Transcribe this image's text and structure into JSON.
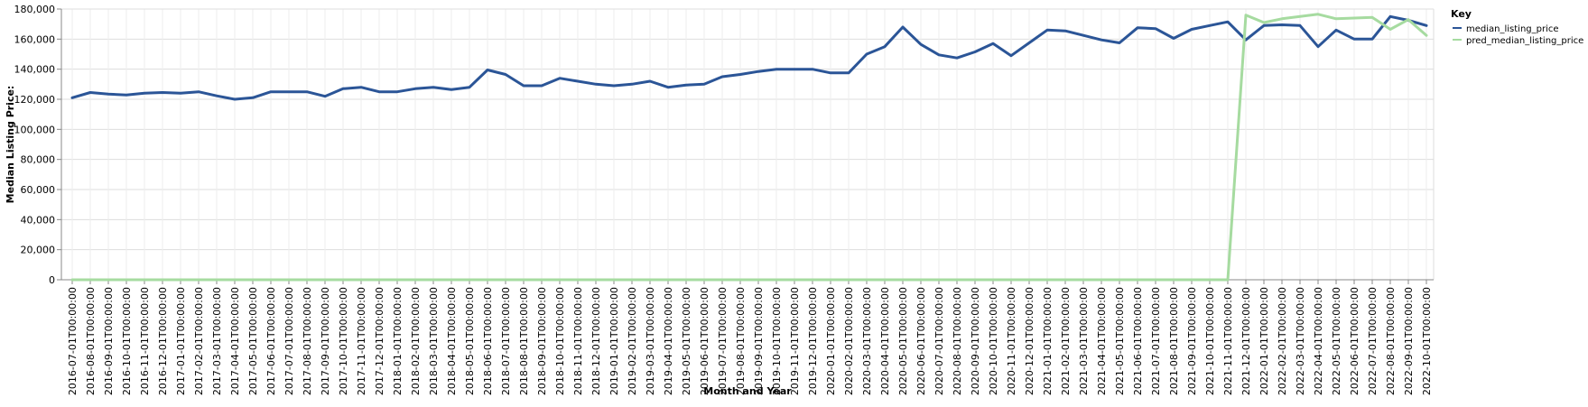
{
  "colors": {
    "median_listing_price": "#2b5597",
    "pred_median_listing_price": "#a6dba0",
    "grid": "#dddddd",
    "axis": "#888888"
  },
  "chart_data": {
    "type": "line",
    "xlabel": "Month and Year",
    "ylabel": "Median Listing Price:",
    "ylim": [
      0,
      180000
    ],
    "y_ticks": [
      0,
      20000,
      40000,
      60000,
      80000,
      100000,
      120000,
      140000,
      160000,
      180000
    ],
    "y_tick_labels": [
      "0",
      "20,000",
      "40,000",
      "60,000",
      "80,000",
      "100,000",
      "120,000",
      "140,000",
      "160,000",
      "180,000"
    ],
    "grid": true,
    "legend": {
      "title": "Key",
      "placement": "top-right"
    },
    "x": [
      "2016-07-01T00:00:00",
      "2016-08-01T00:00:00",
      "2016-09-01T00:00:00",
      "2016-10-01T00:00:00",
      "2016-11-01T00:00:00",
      "2016-12-01T00:00:00",
      "2017-01-01T00:00:00",
      "2017-02-01T00:00:00",
      "2017-03-01T00:00:00",
      "2017-04-01T00:00:00",
      "2017-05-01T00:00:00",
      "2017-06-01T00:00:00",
      "2017-07-01T00:00:00",
      "2017-08-01T00:00:00",
      "2017-09-01T00:00:00",
      "2017-10-01T00:00:00",
      "2017-11-01T00:00:00",
      "2017-12-01T00:00:00",
      "2018-01-01T00:00:00",
      "2018-02-01T00:00:00",
      "2018-03-01T00:00:00",
      "2018-04-01T00:00:00",
      "2018-05-01T00:00:00",
      "2018-06-01T00:00:00",
      "2018-07-01T00:00:00",
      "2018-08-01T00:00:00",
      "2018-09-01T00:00:00",
      "2018-10-01T00:00:00",
      "2018-11-01T00:00:00",
      "2018-12-01T00:00:00",
      "2019-01-01T00:00:00",
      "2019-02-01T00:00:00",
      "2019-03-01T00:00:00",
      "2019-04-01T00:00:00",
      "2019-05-01T00:00:00",
      "2019-06-01T00:00:00",
      "2019-07-01T00:00:00",
      "2019-08-01T00:00:00",
      "2019-09-01T00:00:00",
      "2019-10-01T00:00:00",
      "2019-11-01T00:00:00",
      "2019-12-01T00:00:00",
      "2020-01-01T00:00:00",
      "2020-02-01T00:00:00",
      "2020-03-01T00:00:00",
      "2020-04-01T00:00:00",
      "2020-05-01T00:00:00",
      "2020-06-01T00:00:00",
      "2020-07-01T00:00:00",
      "2020-08-01T00:00:00",
      "2020-09-01T00:00:00",
      "2020-10-01T00:00:00",
      "2020-11-01T00:00:00",
      "2020-12-01T00:00:00",
      "2021-01-01T00:00:00",
      "2021-02-01T00:00:00",
      "2021-03-01T00:00:00",
      "2021-04-01T00:00:00",
      "2021-05-01T00:00:00",
      "2021-06-01T00:00:00",
      "2021-07-01T00:00:00",
      "2021-08-01T00:00:00",
      "2021-09-01T00:00:00",
      "2021-10-01T00:00:00",
      "2021-11-01T00:00:00",
      "2021-12-01T00:00:00",
      "2022-01-01T00:00:00",
      "2022-02-01T00:00:00",
      "2022-03-01T00:00:00",
      "2022-04-01T00:00:00",
      "2022-05-01T00:00:00",
      "2022-06-01T00:00:00",
      "2022-07-01T00:00:00",
      "2022-08-01T00:00:00",
      "2022-09-01T00:00:00",
      "2022-10-01T00:00:00"
    ],
    "series": [
      {
        "name": "median_listing_price",
        "values": [
          121000,
          124500,
          123500,
          122800,
          124000,
          124500,
          124000,
          125000,
          122300,
          120000,
          121000,
          125000,
          125000,
          125000,
          122000,
          127000,
          128000,
          125000,
          125000,
          127000,
          128000,
          126500,
          128000,
          139500,
          136500,
          129000,
          129000,
          134000,
          132000,
          130000,
          129000,
          130000,
          132000,
          128000,
          129500,
          130000,
          135000,
          136500,
          138500,
          140000,
          140000,
          140000,
          137500,
          137500,
          150000,
          155000,
          168000,
          156500,
          149500,
          147500,
          151500,
          157000,
          149000,
          157500,
          166000,
          165500,
          162500,
          159500,
          157500,
          167500,
          167000,
          160500,
          166500,
          169000,
          171500,
          159500,
          169000,
          169500,
          169000,
          155000,
          166000,
          160000,
          160000,
          175000,
          172500,
          169000
        ]
      },
      {
        "name": "pred_median_listing_price",
        "values": [
          0,
          0,
          0,
          0,
          0,
          0,
          0,
          0,
          0,
          0,
          0,
          0,
          0,
          0,
          0,
          0,
          0,
          0,
          0,
          0,
          0,
          0,
          0,
          0,
          0,
          0,
          0,
          0,
          0,
          0,
          0,
          0,
          0,
          0,
          0,
          0,
          0,
          0,
          0,
          0,
          0,
          0,
          0,
          0,
          0,
          0,
          0,
          0,
          0,
          0,
          0,
          0,
          0,
          0,
          0,
          0,
          0,
          0,
          0,
          0,
          0,
          0,
          0,
          0,
          0,
          176000,
          171000,
          173500,
          175000,
          176500,
          173500,
          174000,
          174500,
          166500,
          173000,
          162500
        ]
      }
    ]
  }
}
